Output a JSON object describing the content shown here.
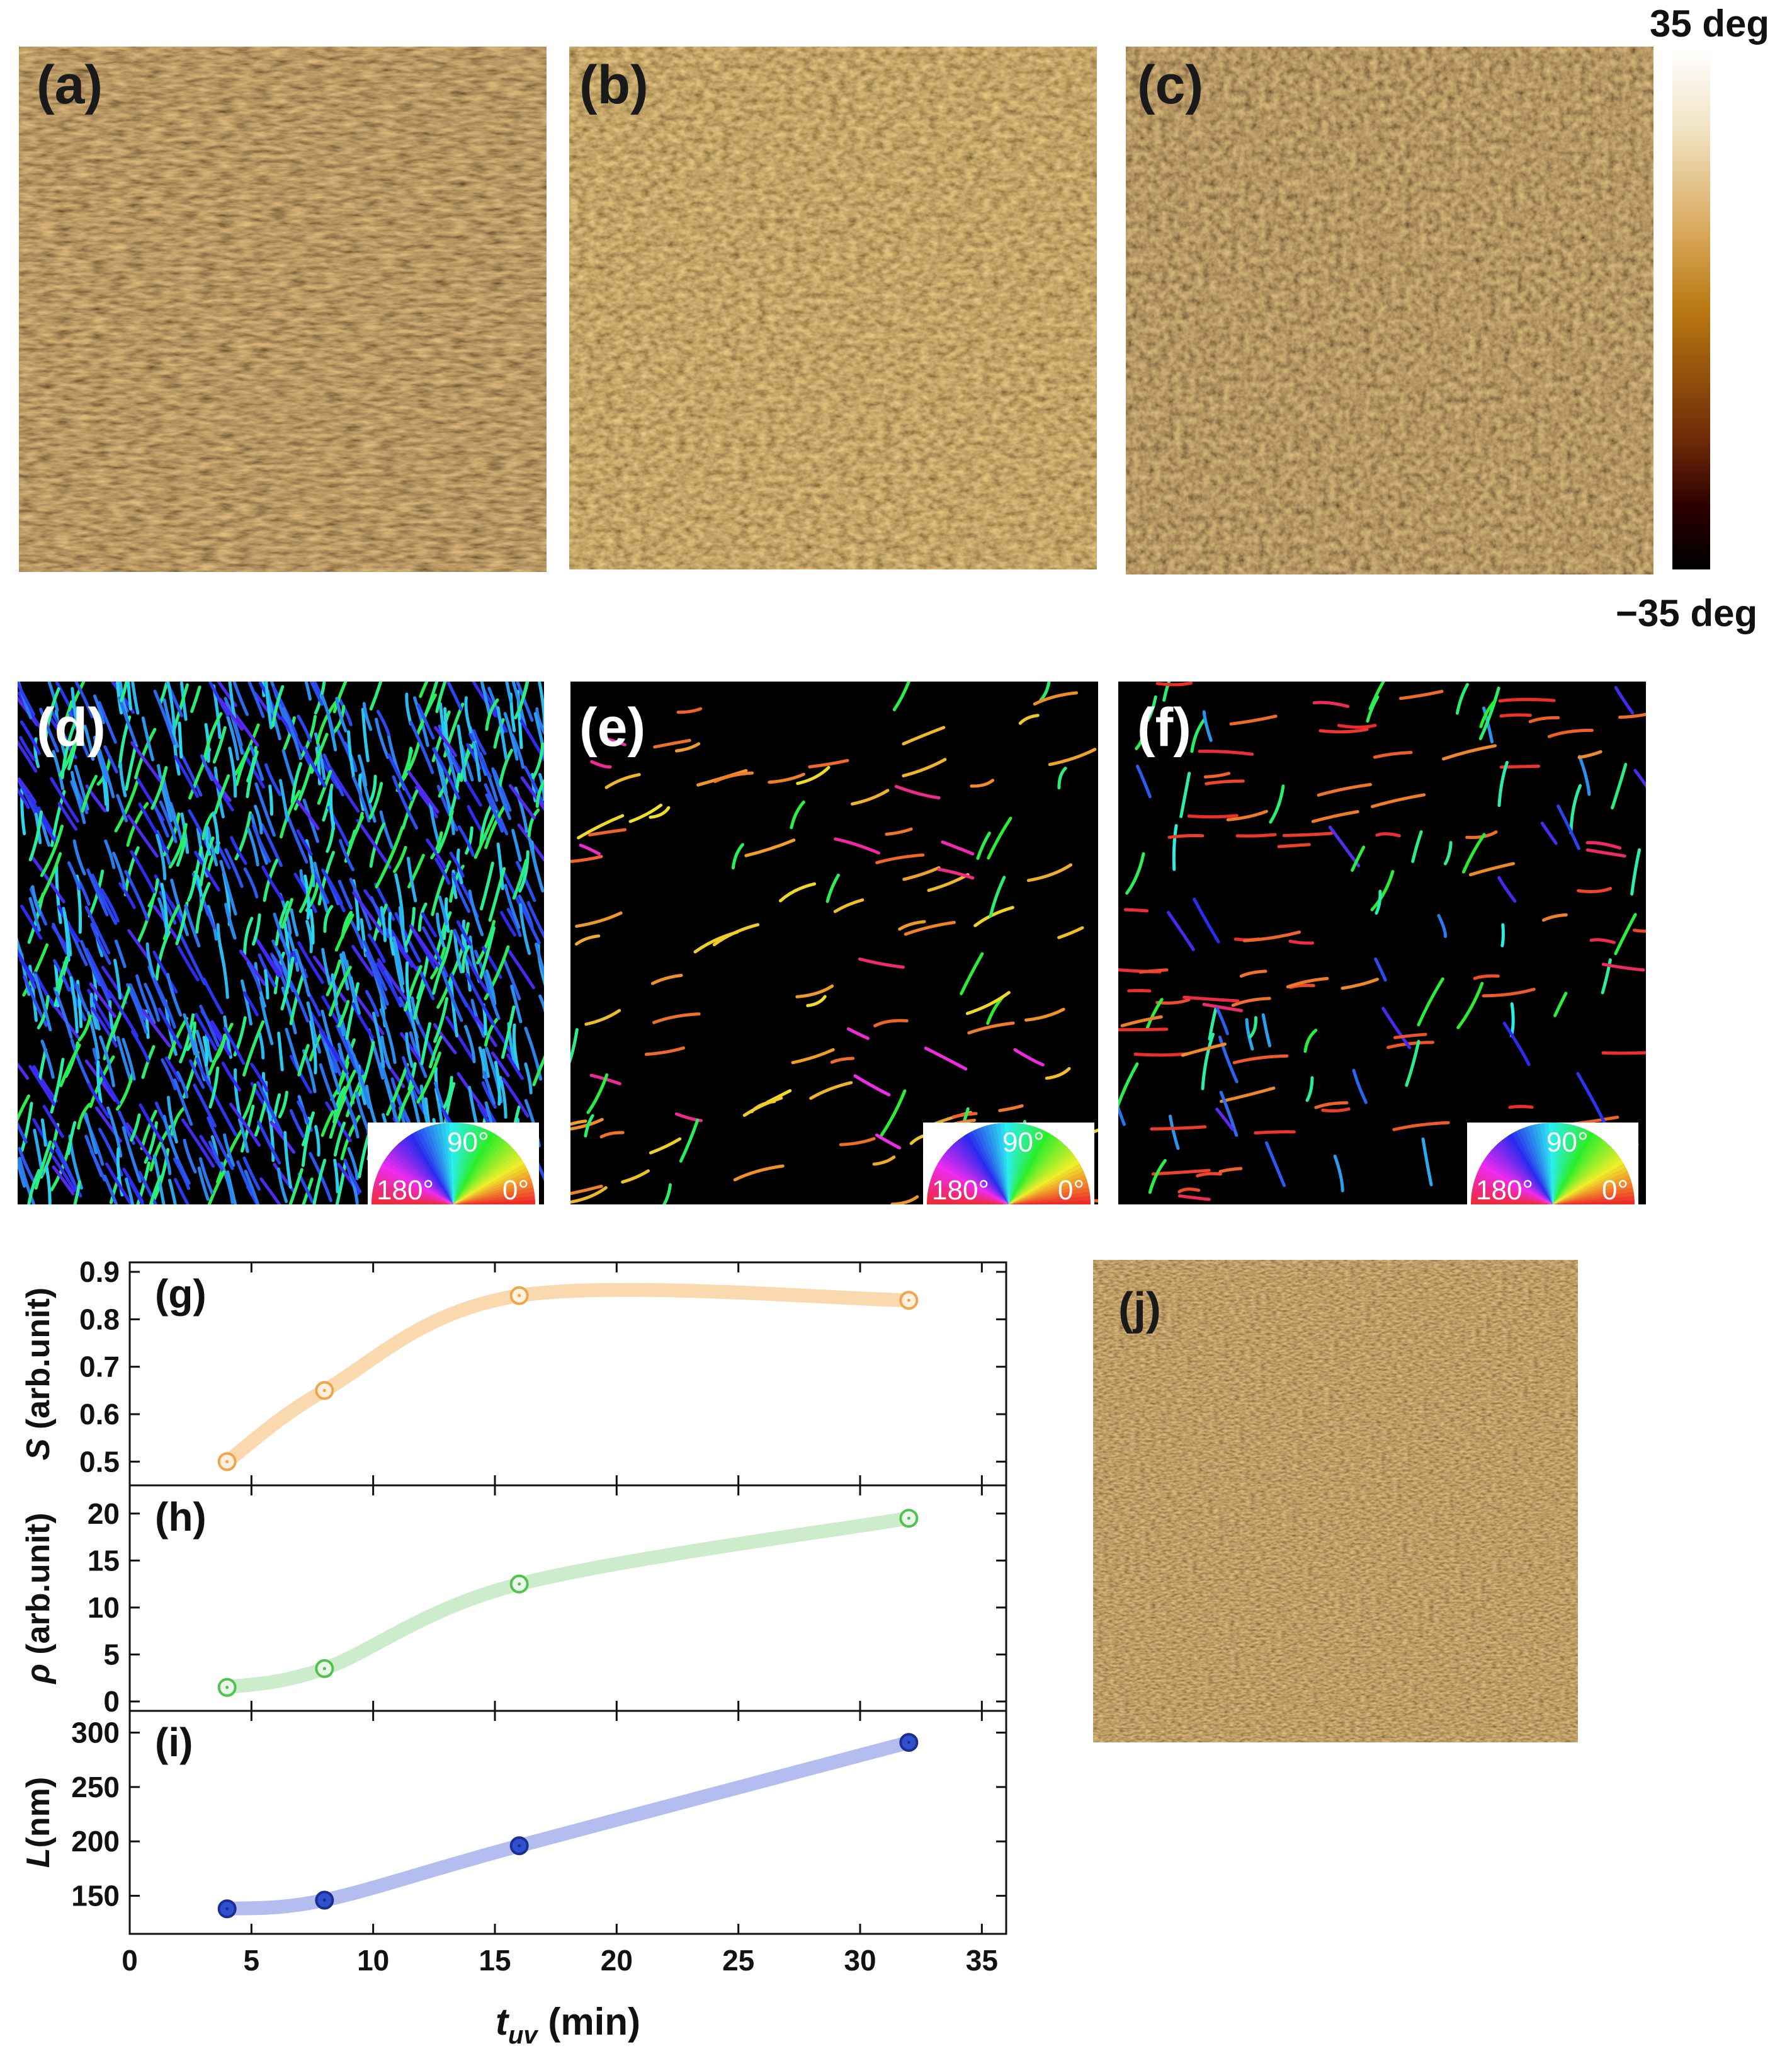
{
  "figure": {
    "panels": {
      "a": "(a)",
      "b": "(b)",
      "c": "(c)",
      "d": "(d)",
      "e": "(e)",
      "f": "(f)",
      "g": "(g)",
      "h": "(h)",
      "i": "(i)",
      "j": "(j)"
    },
    "colorbar": {
      "max_label": "35 deg",
      "min_label": "−35 deg"
    },
    "orientation_wheel": {
      "top": "90°",
      "left": "180°",
      "right": "0°"
    }
  },
  "chart_data": [
    {
      "type": "scatter",
      "panel_label": "(g)",
      "ylabel": "S (arb.unit)",
      "ylabel_italic_part": "S",
      "ylabel_rest": " (arb.unit)",
      "x": [
        4,
        8,
        16,
        32
      ],
      "y": [
        0.5,
        0.65,
        0.85,
        0.84
      ],
      "ylim": [
        0.45,
        0.92
      ],
      "yticks": [
        0.5,
        0.6,
        0.7,
        0.8,
        0.9
      ],
      "fit_curve": true,
      "color": "#f0a54a",
      "line_color": "#f9d9ad",
      "marker": "open-circle"
    },
    {
      "type": "scatter",
      "panel_label": "(h)",
      "ylabel": "ρ (arb.unit)",
      "ylabel_italic_part": "ρ",
      "ylabel_rest": " (arb.unit)",
      "x": [
        4,
        8,
        16,
        32
      ],
      "y": [
        1.5,
        3.5,
        12.5,
        19.5
      ],
      "ylim": [
        -1,
        23
      ],
      "yticks": [
        0,
        5,
        10,
        15,
        20
      ],
      "fit_curve": true,
      "color": "#4fc24f",
      "line_color": "#cdeccb",
      "marker": "open-circle"
    },
    {
      "type": "scatter",
      "panel_label": "(i)",
      "ylabel": "L(nm)",
      "ylabel_italic_part": "L",
      "ylabel_rest": "(nm)",
      "x": [
        4,
        8,
        16,
        32
      ],
      "y": [
        138,
        146,
        196,
        291
      ],
      "ylim": [
        115,
        320
      ],
      "yticks": [
        150,
        200,
        250,
        300
      ],
      "fit_curve": true,
      "color": "#3050d0",
      "line_color": "#b3bdf0",
      "marker": "filled-circle",
      "xlabel": "t_uv (min)",
      "xlabel_main": "t",
      "xlabel_sub": "uv",
      "xlabel_rest": " (min)",
      "xlim": [
        0,
        36
      ],
      "xticks": [
        0,
        5,
        10,
        15,
        20,
        25,
        30,
        35
      ]
    }
  ]
}
